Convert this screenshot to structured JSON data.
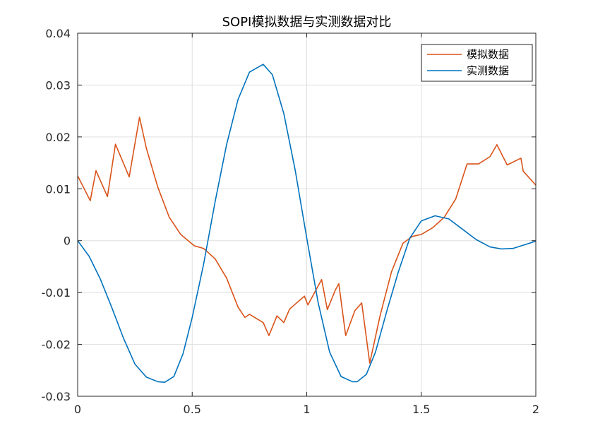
{
  "chart_data": {
    "type": "line",
    "title": "SOPI模拟数据与实测数据对比",
    "xlabel": "",
    "ylabel": "",
    "xlim": [
      0,
      2
    ],
    "ylim": [
      -0.03,
      0.04
    ],
    "x_ticks": [
      0,
      0.5,
      1,
      1.5,
      2
    ],
    "x_tick_labels": [
      "0",
      "0.5",
      "1",
      "1.5",
      "2"
    ],
    "y_ticks": [
      -0.03,
      -0.02,
      -0.01,
      0,
      0.01,
      0.02,
      0.03,
      0.04
    ],
    "y_tick_labels": [
      "-0.03",
      "-0.02",
      "-0.01",
      "0",
      "0.01",
      "0.02",
      "0.03",
      "0.04"
    ],
    "grid": true,
    "legend_position": "top-right",
    "series": [
      {
        "name": "模拟数据",
        "color": "#D95319",
        "x": [
          0,
          0.055,
          0.08,
          0.13,
          0.165,
          0.225,
          0.27,
          0.3,
          0.35,
          0.4,
          0.45,
          0.49,
          0.51,
          0.55,
          0.6,
          0.65,
          0.7,
          0.73,
          0.75,
          0.81,
          0.835,
          0.87,
          0.9,
          0.925,
          0.93,
          0.99,
          1.005,
          1.065,
          1.09,
          1.125,
          1.14,
          1.17,
          1.21,
          1.24,
          1.275,
          1.32,
          1.37,
          1.42,
          1.46,
          1.5,
          1.55,
          1.6,
          1.65,
          1.7,
          1.75,
          1.8,
          1.83,
          1.845,
          1.875,
          1.935,
          1.945,
          2.0
        ],
        "y": [
          0.0125,
          0.0077,
          0.0135,
          0.0085,
          0.0186,
          0.0123,
          0.0238,
          0.0178,
          0.0103,
          0.0045,
          0.0012,
          -0.0003,
          -0.001,
          -0.0015,
          -0.0035,
          -0.0072,
          -0.0128,
          -0.0148,
          -0.0142,
          -0.0158,
          -0.0183,
          -0.0145,
          -0.0158,
          -0.0132,
          -0.013,
          -0.0107,
          -0.0124,
          -0.0075,
          -0.0133,
          -0.0095,
          -0.0083,
          -0.0183,
          -0.0135,
          -0.012,
          -0.0236,
          -0.0145,
          -0.006,
          -0.0005,
          0.0008,
          0.0012,
          0.0025,
          0.0045,
          0.008,
          0.0148,
          0.0148,
          0.0162,
          0.0185,
          0.0172,
          0.0146,
          0.0159,
          0.0134,
          0.0107
        ]
      },
      {
        "name": "实测数据",
        "color": "#0072BD",
        "x": [
          0,
          0.05,
          0.1,
          0.15,
          0.2,
          0.25,
          0.3,
          0.35,
          0.38,
          0.42,
          0.46,
          0.5,
          0.55,
          0.6,
          0.65,
          0.7,
          0.75,
          0.81,
          0.85,
          0.9,
          0.95,
          1.0,
          1.05,
          1.1,
          1.15,
          1.2,
          1.22,
          1.26,
          1.3,
          1.35,
          1.4,
          1.45,
          1.5,
          1.56,
          1.62,
          1.68,
          1.74,
          1.8,
          1.85,
          1.9,
          1.95,
          2.0
        ],
        "y": [
          0,
          -0.003,
          -0.0075,
          -0.013,
          -0.0188,
          -0.0238,
          -0.0263,
          -0.0272,
          -0.0273,
          -0.0262,
          -0.0218,
          -0.0148,
          -0.0045,
          0.0075,
          0.0185,
          0.0272,
          0.0325,
          0.034,
          0.032,
          0.0245,
          0.0135,
          0.0005,
          -0.012,
          -0.0215,
          -0.0262,
          -0.0272,
          -0.0272,
          -0.0258,
          -0.0215,
          -0.0135,
          -0.006,
          0.0005,
          0.0038,
          0.0048,
          0.0042,
          0.0022,
          0.0002,
          -0.0012,
          -0.0016,
          -0.0015,
          -0.0008,
          -0.0001
        ]
      }
    ]
  }
}
